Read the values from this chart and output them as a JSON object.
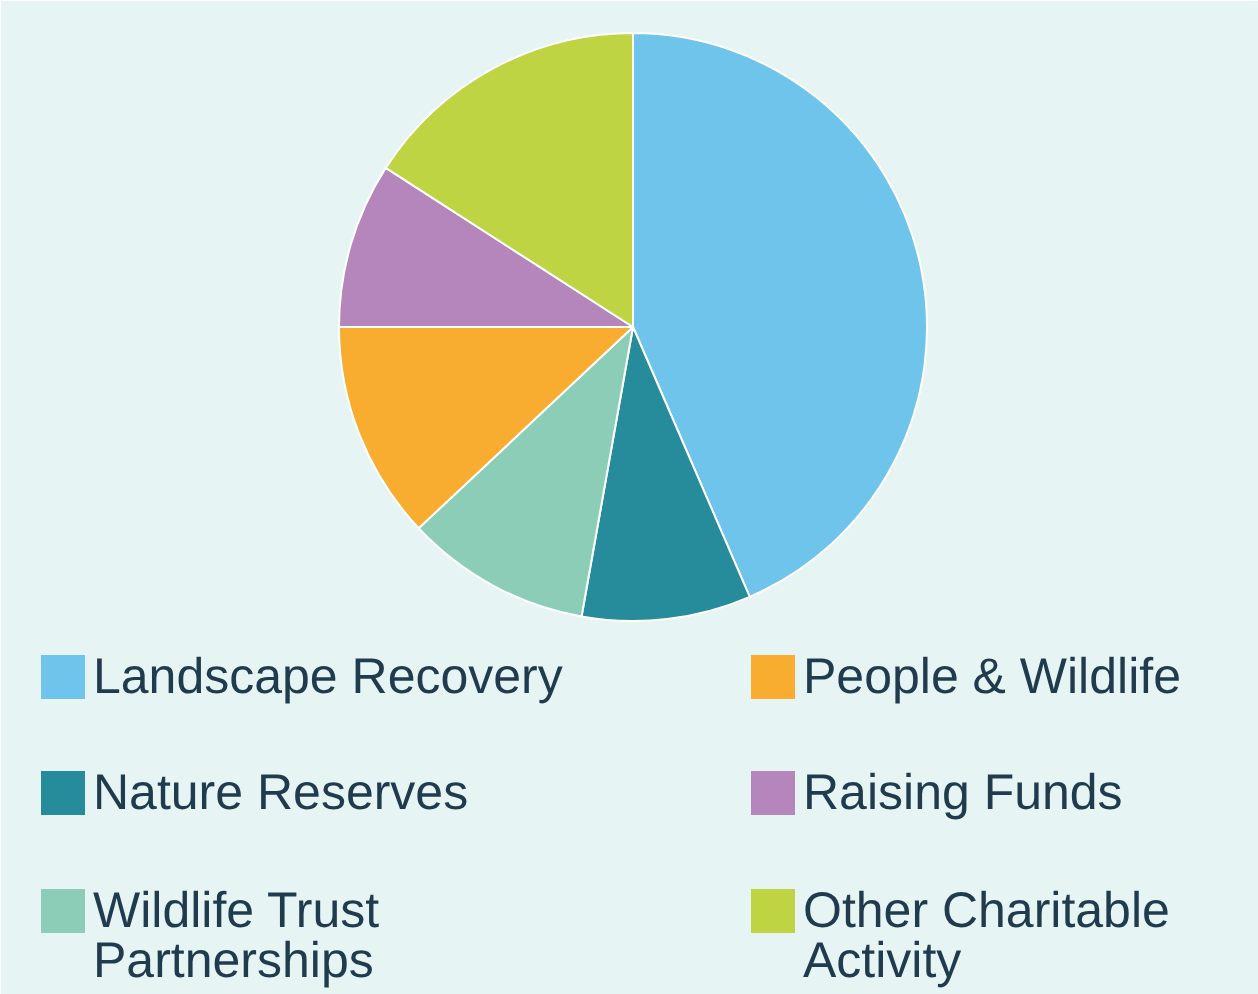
{
  "chart_data": {
    "type": "pie",
    "categories": [
      "Landscape Recovery",
      "Nature Reserves",
      "Wildlife Trust Partnerships",
      "People & Wildlife",
      "Raising Funds",
      "Other Charitable Activity"
    ],
    "values": [
      43.5,
      9.3,
      10.2,
      12.0,
      9.1,
      15.9
    ],
    "colors": [
      "#6ec4ea",
      "#268b9a",
      "#8ccdb8",
      "#f9ad30",
      "#b486bb",
      "#bed442"
    ],
    "legend": "bottom"
  }
}
